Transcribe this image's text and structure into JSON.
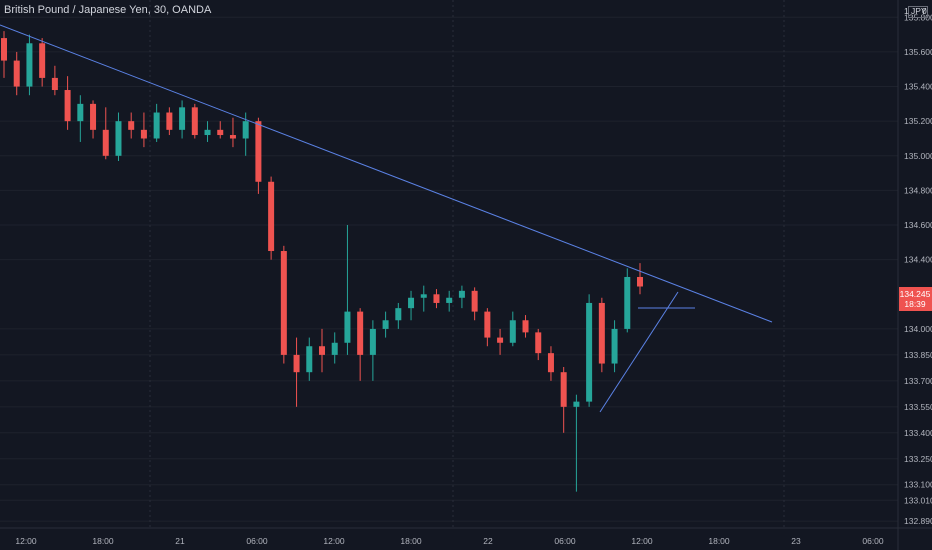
{
  "header": {
    "title": "British Pound / Japanese Yen, 30, OANDA"
  },
  "scale": {
    "currency": "JPY",
    "counter": "0"
  },
  "price_axis": {
    "ticks": [
      "135.800",
      "135.600",
      "135.400",
      "135.200",
      "135.000",
      "134.800",
      "134.600",
      "134.400",
      "134.000",
      "133.850",
      "133.700",
      "133.550",
      "133.400",
      "133.250",
      "133.100",
      "133.010",
      "132.890"
    ]
  },
  "time_axis": {
    "ticks": [
      "12:00",
      "18:00",
      "21",
      "06:00",
      "12:00",
      "18:00",
      "22",
      "06:00",
      "12:00",
      "18:00",
      "23",
      "06:00"
    ]
  },
  "last_price": {
    "value": "134.245",
    "countdown": "18:39"
  },
  "colors": {
    "bg": "#131722",
    "up": "#26a69a",
    "down": "#ef5350",
    "line": "#5b82e5",
    "grid": "#1e222d"
  },
  "chart_data": {
    "type": "candlestick",
    "instrument": "British Pound / Japanese Yen",
    "interval": "30",
    "source": "OANDA",
    "ylim": [
      132.85,
      135.9
    ],
    "xlabel": "",
    "ylabel": "",
    "candles_approx": [
      {
        "o": 135.68,
        "h": 135.72,
        "l": 135.45,
        "c": 135.55
      },
      {
        "o": 135.55,
        "h": 135.6,
        "l": 135.35,
        "c": 135.4
      },
      {
        "o": 135.4,
        "h": 135.7,
        "l": 135.35,
        "c": 135.65
      },
      {
        "o": 135.65,
        "h": 135.68,
        "l": 135.4,
        "c": 135.45
      },
      {
        "o": 135.45,
        "h": 135.52,
        "l": 135.35,
        "c": 135.38
      },
      {
        "o": 135.38,
        "h": 135.46,
        "l": 135.15,
        "c": 135.2
      },
      {
        "o": 135.2,
        "h": 135.35,
        "l": 135.08,
        "c": 135.3
      },
      {
        "o": 135.3,
        "h": 135.32,
        "l": 135.1,
        "c": 135.15
      },
      {
        "o": 135.15,
        "h": 135.28,
        "l": 134.98,
        "c": 135.0
      },
      {
        "o": 135.0,
        "h": 135.25,
        "l": 134.97,
        "c": 135.2
      },
      {
        "o": 135.2,
        "h": 135.25,
        "l": 135.1,
        "c": 135.15
      },
      {
        "o": 135.15,
        "h": 135.25,
        "l": 135.05,
        "c": 135.1
      },
      {
        "o": 135.1,
        "h": 135.3,
        "l": 135.08,
        "c": 135.25
      },
      {
        "o": 135.25,
        "h": 135.28,
        "l": 135.12,
        "c": 135.15
      },
      {
        "o": 135.15,
        "h": 135.32,
        "l": 135.1,
        "c": 135.28
      },
      {
        "o": 135.28,
        "h": 135.3,
        "l": 135.1,
        "c": 135.12
      },
      {
        "o": 135.12,
        "h": 135.2,
        "l": 135.08,
        "c": 135.15
      },
      {
        "o": 135.15,
        "h": 135.2,
        "l": 135.1,
        "c": 135.12
      },
      {
        "o": 135.12,
        "h": 135.22,
        "l": 135.05,
        "c": 135.1
      },
      {
        "o": 135.1,
        "h": 135.25,
        "l": 135.0,
        "c": 135.2
      },
      {
        "o": 135.2,
        "h": 135.22,
        "l": 134.78,
        "c": 134.85
      },
      {
        "o": 134.85,
        "h": 134.88,
        "l": 134.4,
        "c": 134.45
      },
      {
        "o": 134.45,
        "h": 134.48,
        "l": 133.8,
        "c": 133.85
      },
      {
        "o": 133.85,
        "h": 133.95,
        "l": 133.55,
        "c": 133.75
      },
      {
        "o": 133.75,
        "h": 133.95,
        "l": 133.7,
        "c": 133.9
      },
      {
        "o": 133.9,
        "h": 134.0,
        "l": 133.75,
        "c": 133.85
      },
      {
        "o": 133.85,
        "h": 133.98,
        "l": 133.8,
        "c": 133.92
      },
      {
        "o": 133.92,
        "h": 134.6,
        "l": 133.85,
        "c": 134.1
      },
      {
        "o": 134.1,
        "h": 134.12,
        "l": 133.7,
        "c": 133.85
      },
      {
        "o": 133.85,
        "h": 134.05,
        "l": 133.7,
        "c": 134.0
      },
      {
        "o": 134.0,
        "h": 134.1,
        "l": 133.95,
        "c": 134.05
      },
      {
        "o": 134.05,
        "h": 134.15,
        "l": 134.0,
        "c": 134.12
      },
      {
        "o": 134.12,
        "h": 134.22,
        "l": 134.05,
        "c": 134.18
      },
      {
        "o": 134.18,
        "h": 134.25,
        "l": 134.1,
        "c": 134.2
      },
      {
        "o": 134.2,
        "h": 134.23,
        "l": 134.12,
        "c": 134.15
      },
      {
        "o": 134.15,
        "h": 134.22,
        "l": 134.1,
        "c": 134.18
      },
      {
        "o": 134.18,
        "h": 134.25,
        "l": 134.12,
        "c": 134.22
      },
      {
        "o": 134.22,
        "h": 134.24,
        "l": 134.05,
        "c": 134.1
      },
      {
        "o": 134.1,
        "h": 134.12,
        "l": 133.9,
        "c": 133.95
      },
      {
        "o": 133.95,
        "h": 134.0,
        "l": 133.85,
        "c": 133.92
      },
      {
        "o": 133.92,
        "h": 134.1,
        "l": 133.9,
        "c": 134.05
      },
      {
        "o": 134.05,
        "h": 134.08,
        "l": 133.95,
        "c": 133.98
      },
      {
        "o": 133.98,
        "h": 134.0,
        "l": 133.82,
        "c": 133.86
      },
      {
        "o": 133.86,
        "h": 133.9,
        "l": 133.7,
        "c": 133.75
      },
      {
        "o": 133.75,
        "h": 133.78,
        "l": 133.4,
        "c": 133.55
      },
      {
        "o": 133.55,
        "h": 133.62,
        "l": 133.06,
        "c": 133.58
      },
      {
        "o": 133.58,
        "h": 134.2,
        "l": 133.55,
        "c": 134.15
      },
      {
        "o": 134.15,
        "h": 134.18,
        "l": 133.75,
        "c": 133.8
      },
      {
        "o": 133.8,
        "h": 134.05,
        "l": 133.75,
        "c": 134.0
      },
      {
        "o": 134.0,
        "h": 134.35,
        "l": 133.98,
        "c": 134.3
      },
      {
        "o": 134.3,
        "h": 134.38,
        "l": 134.2,
        "c": 134.245
      }
    ]
  }
}
